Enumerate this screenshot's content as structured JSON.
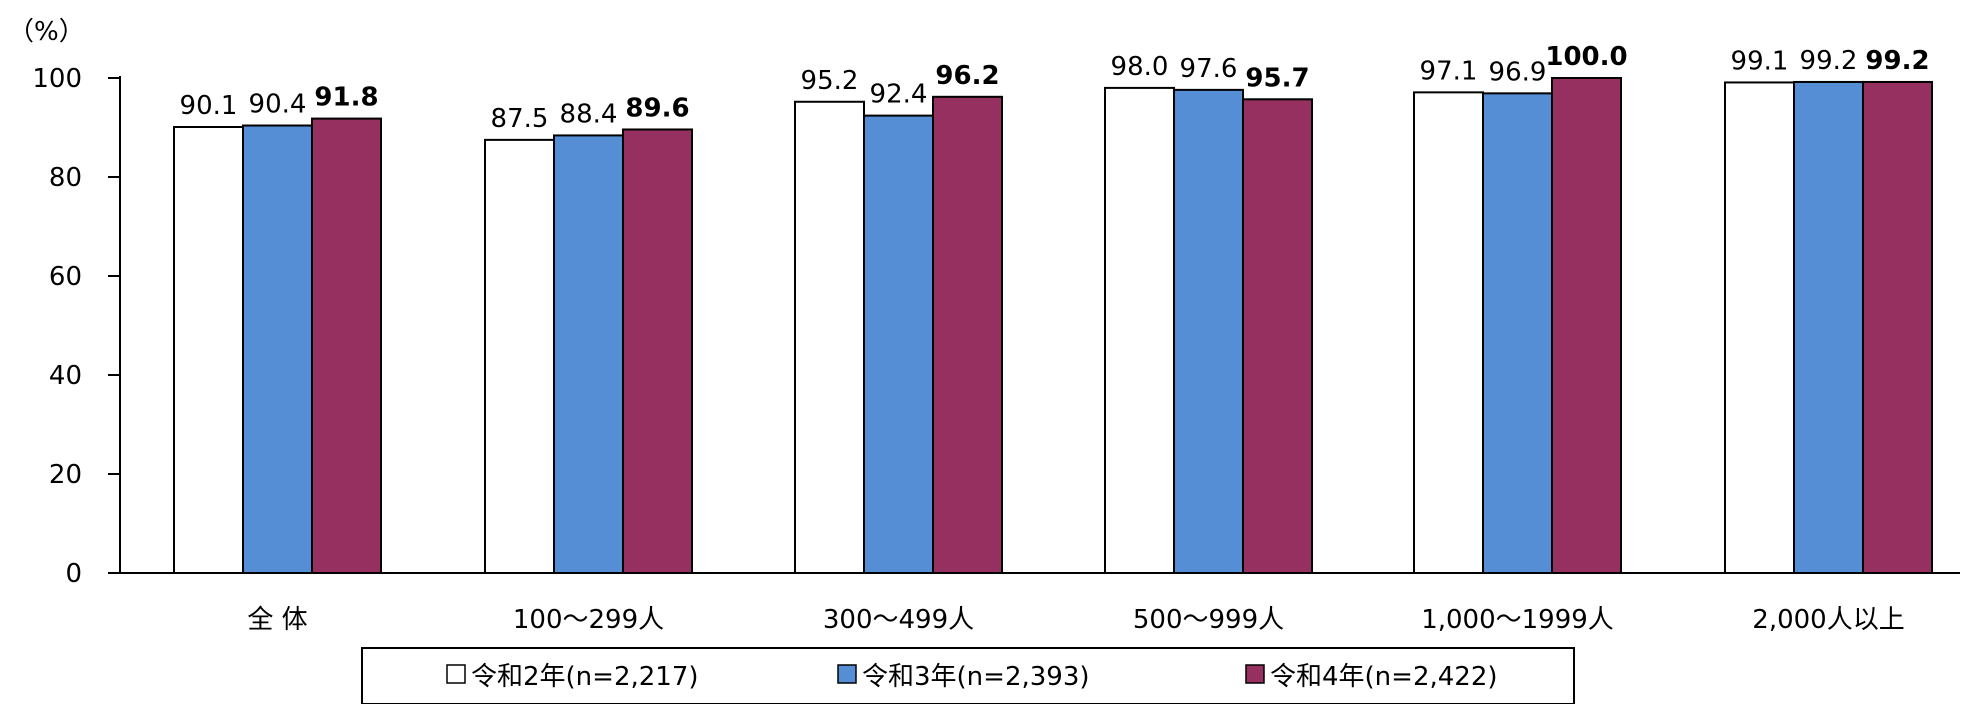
{
  "chart_data": {
    "type": "bar",
    "unit_label": "（%）",
    "categories": [
      "全 体",
      "100～299人",
      "300～499人",
      "500～999人",
      "1,000～1999人",
      "2,000人以上"
    ],
    "series": [
      {
        "name": "令和2年(n=2,217)",
        "color": "#ffffff",
        "bold_labels": false,
        "values": [
          90.1,
          87.5,
          95.2,
          98.0,
          97.1,
          99.1
        ]
      },
      {
        "name": "令和3年(n=2,393)",
        "color": "#558ed5",
        "bold_labels": false,
        "values": [
          90.4,
          88.4,
          92.4,
          97.6,
          96.9,
          99.2
        ]
      },
      {
        "name": "令和4年(n=2,422)",
        "color": "#953060",
        "bold_labels": true,
        "values": [
          91.8,
          89.6,
          96.2,
          95.7,
          100.0,
          99.2
        ]
      }
    ],
    "value_labels": [
      [
        "90.1",
        "87.5",
        "95.2",
        "98.0",
        "97.1",
        "99.1"
      ],
      [
        "90.4",
        "88.4",
        "92.4",
        "97.6",
        "96.9",
        "99.2"
      ],
      [
        "91.8",
        "89.6",
        "96.2",
        "95.7",
        "100.0",
        "99.2"
      ]
    ],
    "ylim": [
      0,
      100
    ],
    "yticks": [
      0,
      20,
      40,
      60,
      80,
      100
    ],
    "ytick_labels": [
      "0",
      "20",
      "40",
      "60",
      "80",
      "100"
    ],
    "grid": false,
    "legend_position": "bottom"
  }
}
